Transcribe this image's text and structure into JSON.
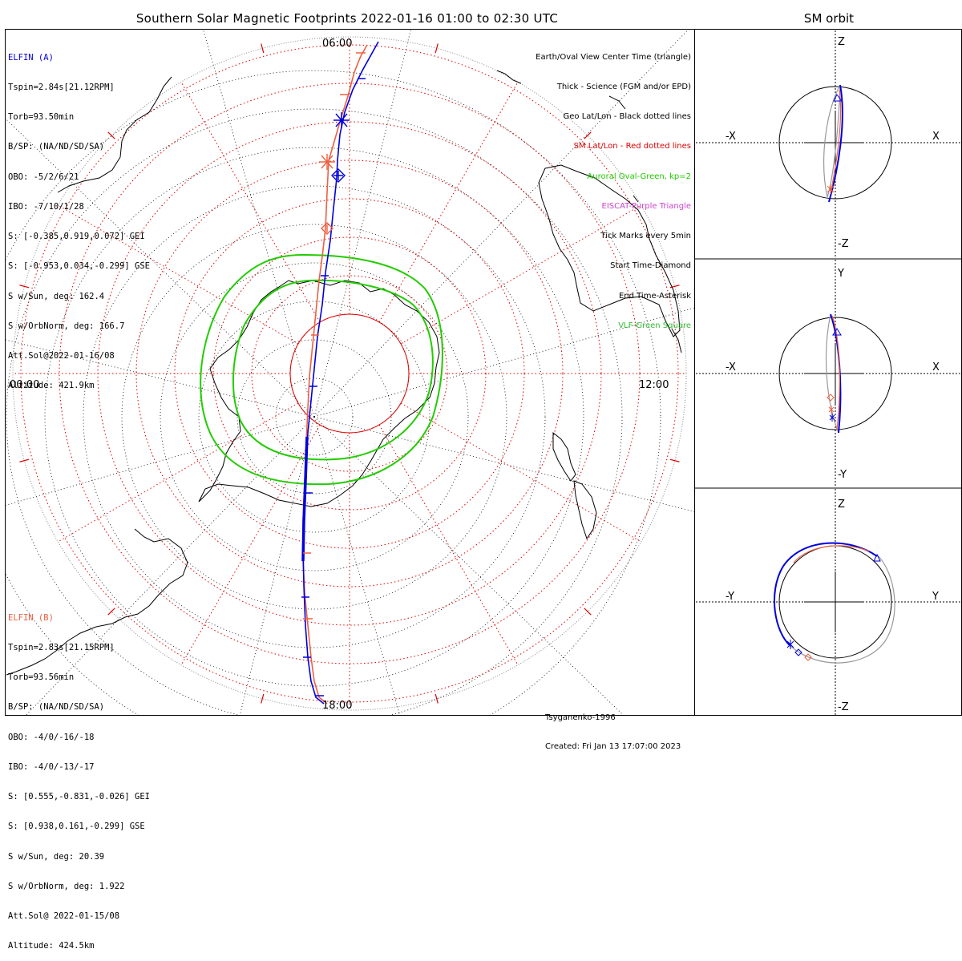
{
  "title": "Southern Solar Magnetic Footprints 2022-01-16 01:00 to 02:30 UTC",
  "sm_orbit_title": "SM orbit",
  "colors": {
    "elfin_a": "#0000dd",
    "elfin_b": "#ee6040",
    "sm_grid": "#dd0000",
    "geo_grid": "#000000",
    "auroral_oval": "#22cc00",
    "eiscat": "#cc44cc",
    "vlf": "#33bb33",
    "orbit_gray": "#999999"
  },
  "elfin_a": {
    "name": "ELFIN (A)",
    "lines": [
      "Tspin=2.84s[21.12RPM]",
      "Torb=93.50min",
      "B/SP: (NA/ND/SD/SA)",
      "OBO: -5/2/6/21",
      "IBO: -7/10/1/28",
      "S: [-0.385,0.919,0.072] GEI",
      "S: [-0.953,0.034,-0.299] GSE",
      "S w/Sun, deg: 162.4",
      "S w/OrbNorm, deg: 166.7",
      "Att.Sol@2022-01-16/08",
      "Altitude: 421.9km"
    ]
  },
  "elfin_b": {
    "name": "ELFIN (B)",
    "lines": [
      "Tspin=2.83s[21.15RPM]",
      "Torb=93.56min",
      "B/SP: (NA/ND/SD/SA)",
      "OBO: -4/0/-16/-18",
      "IBO: -4/0/-13/-17",
      "S: [0.555,-0.831,-0.026] GEI",
      "S: [0.938,0.161,-0.299] GSE",
      "S w/Sun, deg: 20.39",
      "S w/OrbNorm, deg: 1.922",
      "Att.Sol@ 2022-01-15/08",
      "Altitude: 424.5km"
    ]
  },
  "legend": [
    {
      "text": "Earth/Oval View Center Time (triangle)",
      "color": "#000000"
    },
    {
      "text": "Thick - Science (FGM and/or EPD)",
      "color": "#000000"
    },
    {
      "text": "Geo Lat/Lon - Black dotted lines",
      "color": "#000000"
    },
    {
      "text": "SM Lat/Lon - Red dotted lines",
      "color": "#dd0000"
    },
    {
      "text": "Auroral Oval-Green, kp=2",
      "color": "#22cc00"
    },
    {
      "text": "EISCAT-Purple Triangle",
      "color": "#cc44cc"
    },
    {
      "text": "Tick Marks every 5min",
      "color": "#000000"
    },
    {
      "text": "Start Time-Diamond",
      "color": "#000000"
    },
    {
      "text": "End Time-Asterisk",
      "color": "#000000"
    },
    {
      "text": "VLF-Green Square",
      "color": "#33bb33"
    }
  ],
  "mlt_labels": {
    "top": "06:00",
    "left": "00:00",
    "right": "12:00",
    "bottom": "18:00"
  },
  "credits": {
    "model": "Tsyganenko-1996",
    "created": "Created: Fri Jan 13 17:07:00 2023"
  },
  "sm_panels": [
    {
      "left": "-X",
      "right": "X",
      "top": "Z",
      "bottom": "-Z"
    },
    {
      "left": "-X",
      "right": "X",
      "top": "Y",
      "bottom": "-Y"
    },
    {
      "left": "-Y",
      "right": "Y",
      "top": "Z",
      "bottom": "-Z"
    }
  ]
}
